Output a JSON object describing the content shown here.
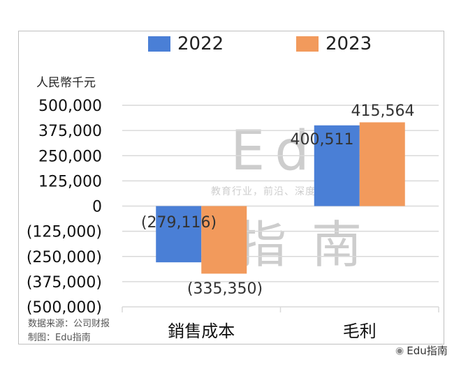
{
  "chart_data": {
    "type": "bar",
    "categories": [
      "銷售成本",
      "毛利"
    ],
    "series": [
      {
        "name": "2022",
        "values": [
          -279116,
          400511
        ],
        "labels": [
          "(279,116)",
          "400,511"
        ],
        "color": "#4a7fd6"
      },
      {
        "name": "2023",
        "values": [
          -335350,
          415564
        ],
        "labels": [
          "(335,350)",
          "415,564"
        ],
        "color": "#f29a5c"
      }
    ],
    "ylabel": "人民幣千元",
    "ylim": [
      -500000,
      500000
    ],
    "yticks": [
      500000,
      375000,
      250000,
      125000,
      0,
      -125000,
      -250000,
      -375000,
      -500000
    ],
    "ytick_labels": [
      "500,000",
      "375,000",
      "250,000",
      "125,000",
      "0",
      "(125,000)",
      "(250,000)",
      "(375,000)",
      "(500,000)"
    ],
    "grid": true,
    "legend": "top-center"
  },
  "source": {
    "line1": "数据来源：公司财报",
    "line2": "制图：Edu指南"
  },
  "watermark": {
    "big": "Edu",
    "small": "教育行业，前沿、深度、独家",
    "cn": "指南"
  },
  "brand": {
    "icon": "wechat-icon",
    "text": "Edu指南"
  }
}
